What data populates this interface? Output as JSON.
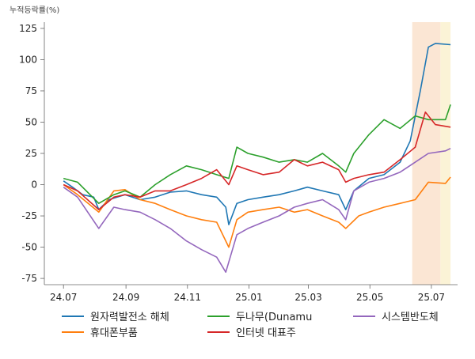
{
  "chart_data": {
    "type": "line",
    "ylabel": "누적등락률(%)",
    "xlabel": "",
    "title": "",
    "ylim": [
      -80,
      130
    ],
    "xlim": [
      "2024-06-12",
      "2025-07-27"
    ],
    "yticks": [
      125,
      100,
      75,
      50,
      25,
      0,
      -25,
      -50,
      -75
    ],
    "xticks": [
      "24.07",
      "24.09",
      "24.11",
      "25.01",
      "25.03",
      "25.05",
      "25.07"
    ],
    "xtick_dates": [
      "2024-07-01",
      "2024-09-01",
      "2024-11-01",
      "2025-01-01",
      "2025-03-01",
      "2025-05-01",
      "2025-07-01"
    ],
    "grid": false,
    "legend_position": "bottom",
    "highlight_spans": [
      {
        "start": "2025-06-12",
        "end": "2025-07-10",
        "color": "#fbe6d4"
      },
      {
        "start": "2025-07-10",
        "end": "2025-07-20",
        "color": "#fbf3d6"
      }
    ],
    "series": [
      {
        "name": "원자력발전소 해체",
        "color": "#1f77b4",
        "points": [
          [
            "2024-07-01",
            3
          ],
          [
            "2024-07-10",
            -2
          ],
          [
            "2024-07-20",
            -8
          ],
          [
            "2024-07-31",
            -10
          ],
          [
            "2024-08-05",
            -20
          ],
          [
            "2024-08-15",
            -12
          ],
          [
            "2024-08-31",
            -8
          ],
          [
            "2024-09-15",
            -12
          ],
          [
            "2024-09-30",
            -10
          ],
          [
            "2024-10-15",
            -6
          ],
          [
            "2024-10-31",
            -5
          ],
          [
            "2024-11-15",
            -8
          ],
          [
            "2024-11-30",
            -10
          ],
          [
            "2024-12-09",
            -18
          ],
          [
            "2024-12-12",
            -32
          ],
          [
            "2024-12-20",
            -15
          ],
          [
            "2024-12-31",
            -12
          ],
          [
            "2025-01-15",
            -10
          ],
          [
            "2025-01-31",
            -8
          ],
          [
            "2025-02-15",
            -5
          ],
          [
            "2025-02-28",
            -2
          ],
          [
            "2025-03-15",
            -5
          ],
          [
            "2025-03-31",
            -8
          ],
          [
            "2025-04-07",
            -20
          ],
          [
            "2025-04-15",
            -5
          ],
          [
            "2025-04-30",
            5
          ],
          [
            "2025-05-15",
            8
          ],
          [
            "2025-05-31",
            18
          ],
          [
            "2025-06-10",
            35
          ],
          [
            "2025-06-20",
            75
          ],
          [
            "2025-06-28",
            110
          ],
          [
            "2025-07-05",
            113
          ],
          [
            "2025-07-20",
            112
          ]
        ]
      },
      {
        "name": "휴대폰부품",
        "color": "#ff7f0e",
        "points": [
          [
            "2024-07-01",
            0
          ],
          [
            "2024-07-15",
            -8
          ],
          [
            "2024-08-05",
            -22
          ],
          [
            "2024-08-20",
            -5
          ],
          [
            "2024-08-31",
            -4
          ],
          [
            "2024-09-15",
            -12
          ],
          [
            "2024-09-30",
            -15
          ],
          [
            "2024-10-15",
            -20
          ],
          [
            "2024-10-31",
            -25
          ],
          [
            "2024-11-15",
            -28
          ],
          [
            "2024-11-30",
            -30
          ],
          [
            "2024-12-12",
            -50
          ],
          [
            "2024-12-20",
            -28
          ],
          [
            "2024-12-31",
            -22
          ],
          [
            "2025-01-15",
            -20
          ],
          [
            "2025-01-31",
            -18
          ],
          [
            "2025-02-15",
            -22
          ],
          [
            "2025-02-28",
            -20
          ],
          [
            "2025-03-15",
            -25
          ],
          [
            "2025-03-31",
            -30
          ],
          [
            "2025-04-07",
            -35
          ],
          [
            "2025-04-20",
            -25
          ],
          [
            "2025-04-30",
            -22
          ],
          [
            "2025-05-15",
            -18
          ],
          [
            "2025-05-31",
            -15
          ],
          [
            "2025-06-15",
            -12
          ],
          [
            "2025-06-28",
            2
          ],
          [
            "2025-07-15",
            1
          ],
          [
            "2025-07-20",
            6
          ]
        ]
      },
      {
        "name": "두나무(Dunamu",
        "color": "#2ca02c",
        "points": [
          [
            "2024-07-01",
            5
          ],
          [
            "2024-07-15",
            2
          ],
          [
            "2024-08-05",
            -15
          ],
          [
            "2024-08-20",
            -8
          ],
          [
            "2024-08-31",
            -5
          ],
          [
            "2024-09-15",
            -10
          ],
          [
            "2024-09-30",
            0
          ],
          [
            "2024-10-15",
            8
          ],
          [
            "2024-10-31",
            15
          ],
          [
            "2024-11-15",
            12
          ],
          [
            "2024-11-30",
            8
          ],
          [
            "2024-12-12",
            5
          ],
          [
            "2024-12-20",
            30
          ],
          [
            "2024-12-31",
            25
          ],
          [
            "2025-01-15",
            22
          ],
          [
            "2025-01-31",
            18
          ],
          [
            "2025-02-15",
            20
          ],
          [
            "2025-02-28",
            18
          ],
          [
            "2025-03-15",
            25
          ],
          [
            "2025-03-31",
            15
          ],
          [
            "2025-04-07",
            10
          ],
          [
            "2025-04-15",
            25
          ],
          [
            "2025-04-30",
            40
          ],
          [
            "2025-05-15",
            52
          ],
          [
            "2025-05-31",
            45
          ],
          [
            "2025-06-15",
            55
          ],
          [
            "2025-06-28",
            52
          ],
          [
            "2025-07-15",
            52
          ],
          [
            "2025-07-20",
            64
          ]
        ]
      },
      {
        "name": "인터넷 대표주",
        "color": "#d62728",
        "points": [
          [
            "2024-07-01",
            0
          ],
          [
            "2024-07-15",
            -5
          ],
          [
            "2024-08-05",
            -20
          ],
          [
            "2024-08-20",
            -10
          ],
          [
            "2024-08-31",
            -8
          ],
          [
            "2024-09-15",
            -10
          ],
          [
            "2024-09-30",
            -5
          ],
          [
            "2024-10-15",
            -5
          ],
          [
            "2024-10-31",
            0
          ],
          [
            "2024-11-15",
            5
          ],
          [
            "2024-11-30",
            12
          ],
          [
            "2024-12-12",
            0
          ],
          [
            "2024-12-20",
            15
          ],
          [
            "2024-12-31",
            12
          ],
          [
            "2025-01-15",
            8
          ],
          [
            "2025-01-31",
            10
          ],
          [
            "2025-02-15",
            20
          ],
          [
            "2025-02-28",
            15
          ],
          [
            "2025-03-15",
            18
          ],
          [
            "2025-03-31",
            12
          ],
          [
            "2025-04-07",
            2
          ],
          [
            "2025-04-15",
            5
          ],
          [
            "2025-04-30",
            8
          ],
          [
            "2025-05-15",
            10
          ],
          [
            "2025-05-31",
            20
          ],
          [
            "2025-06-15",
            30
          ],
          [
            "2025-06-25",
            58
          ],
          [
            "2025-07-05",
            48
          ],
          [
            "2025-07-20",
            46
          ]
        ]
      },
      {
        "name": "시스템반도체",
        "color": "#9467bd",
        "points": [
          [
            "2024-07-01",
            -2
          ],
          [
            "2024-07-15",
            -10
          ],
          [
            "2024-08-05",
            -35
          ],
          [
            "2024-08-20",
            -18
          ],
          [
            "2024-08-31",
            -20
          ],
          [
            "2024-09-15",
            -22
          ],
          [
            "2024-09-30",
            -28
          ],
          [
            "2024-10-15",
            -35
          ],
          [
            "2024-10-31",
            -45
          ],
          [
            "2024-11-15",
            -52
          ],
          [
            "2024-11-30",
            -58
          ],
          [
            "2024-12-09",
            -70
          ],
          [
            "2024-12-20",
            -40
          ],
          [
            "2024-12-31",
            -35
          ],
          [
            "2025-01-15",
            -30
          ],
          [
            "2025-01-31",
            -25
          ],
          [
            "2025-02-15",
            -18
          ],
          [
            "2025-02-28",
            -15
          ],
          [
            "2025-03-15",
            -12
          ],
          [
            "2025-03-31",
            -20
          ],
          [
            "2025-04-07",
            -28
          ],
          [
            "2025-04-15",
            -5
          ],
          [
            "2025-04-30",
            2
          ],
          [
            "2025-05-15",
            5
          ],
          [
            "2025-05-31",
            10
          ],
          [
            "2025-06-15",
            18
          ],
          [
            "2025-06-28",
            25
          ],
          [
            "2025-07-15",
            27
          ],
          [
            "2025-07-20",
            29
          ]
        ]
      }
    ]
  }
}
